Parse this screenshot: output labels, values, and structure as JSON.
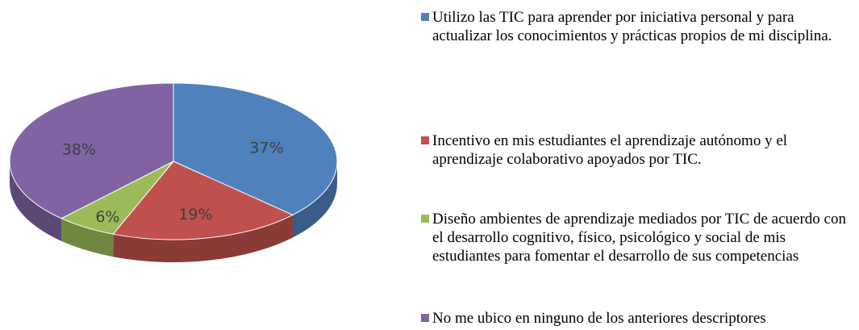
{
  "chart_data": {
    "type": "pie",
    "categories": [
      "Utilizo las TIC para aprender por iniciativa personal y para actualizar los conocimientos y prácticas propios de mi disciplina.",
      "Incentivo en mis estudiantes el aprendizaje autónomo y el aprendizaje colaborativo apoyados por TIC.",
      "Diseño ambientes de aprendizaje mediados por TIC de acuerdo con el desarrollo cognitivo, físico, psicológico y social de mis estudiantes para fomentar el desarrollo de sus competencias",
      "No me ubico en ninguno de los anteriores descriptores"
    ],
    "values": [
      37,
      19,
      6,
      38
    ],
    "value_labels": [
      "37%",
      "19%",
      "6%",
      "38%"
    ],
    "colors": [
      "#4f81bd",
      "#c0504d",
      "#9bbb59",
      "#8064a2"
    ],
    "legend": "right"
  }
}
